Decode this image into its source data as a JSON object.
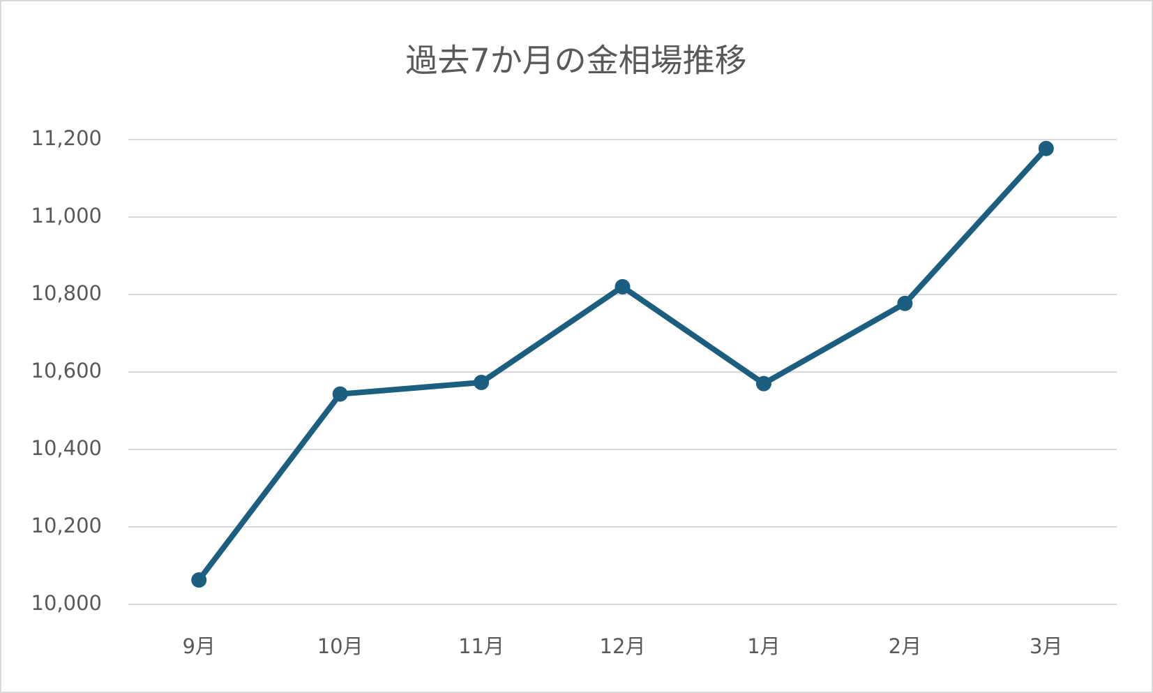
{
  "chart_data": {
    "type": "line",
    "title": "過去7か月の金相場推移",
    "categories": [
      "9月",
      "10月",
      "11月",
      "12月",
      "1月",
      "2月",
      "3月"
    ],
    "series": [
      {
        "name": "金相場",
        "color": "#1b5e80",
        "values": [
          10063,
          10543,
          10573,
          10820,
          10570,
          10777,
          11177
        ]
      }
    ],
    "ylim": [
      10000,
      11200
    ],
    "yticks": [
      {
        "value": 10000,
        "label": "10,000"
      },
      {
        "value": 10200,
        "label": "10,200"
      },
      {
        "value": 10400,
        "label": "10,400"
      },
      {
        "value": 10600,
        "label": "10,600"
      },
      {
        "value": 10800,
        "label": "10,800"
      },
      {
        "value": 11000,
        "label": "11,000"
      },
      {
        "value": 11200,
        "label": "11,200"
      }
    ],
    "grid": true,
    "legend": false
  }
}
